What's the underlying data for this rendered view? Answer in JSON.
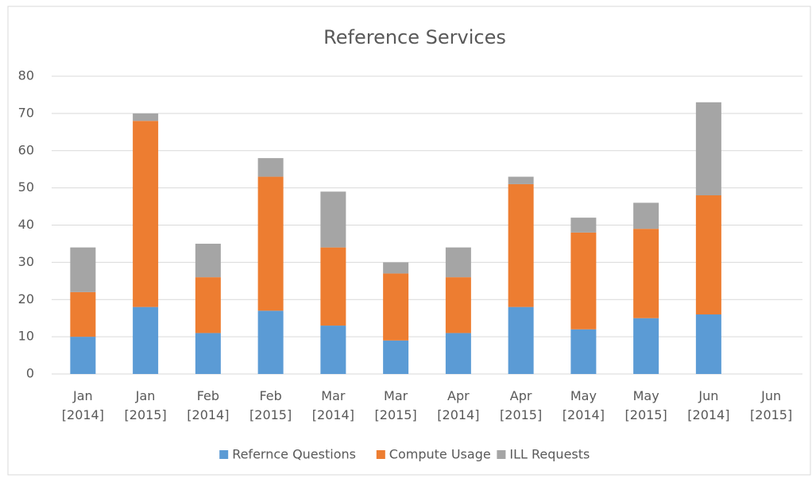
{
  "chart_data": {
    "type": "stacked_bar",
    "title": "Reference Services",
    "categories": [
      "Jan [2014]",
      "Jan [2015]",
      "Feb [2014]",
      "Feb [2015]",
      "Mar [2014]",
      "Mar [2015]",
      "Apr [2014]",
      "Apr [2015]",
      "May [2014]",
      "May [2015]",
      "Jun [2014]",
      "Jun [2015]"
    ],
    "series": [
      {
        "name": "Refernce Questions",
        "color": "#5b9bd5",
        "values": [
          10,
          18,
          11,
          17,
          13,
          9,
          11,
          18,
          12,
          15,
          16,
          null
        ]
      },
      {
        "name": "Compute Usage",
        "color": "#ed7d31",
        "values": [
          12,
          50,
          15,
          36,
          21,
          18,
          15,
          33,
          26,
          24,
          32,
          null
        ]
      },
      {
        "name": "ILL Requests",
        "color": "#a5a5a5",
        "values": [
          12,
          2,
          9,
          5,
          15,
          3,
          8,
          2,
          4,
          7,
          25,
          null
        ]
      }
    ],
    "ylim": [
      0,
      80
    ],
    "yticks": [
      0,
      10,
      20,
      30,
      40,
      50,
      60,
      70,
      80
    ],
    "grid": true,
    "legend": "bottom"
  }
}
